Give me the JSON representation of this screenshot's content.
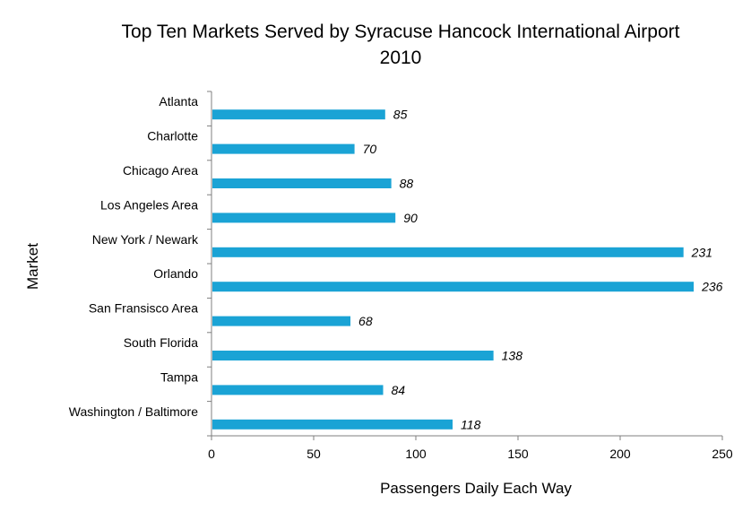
{
  "chart_data": {
    "type": "bar",
    "orientation": "horizontal",
    "title": "Top Ten Markets Served by Syracuse Hancock International Airport",
    "subtitle": "2010",
    "xlabel": "Passengers Daily Each Way",
    "ylabel": "Market",
    "categories": [
      "Atlanta",
      "Charlotte",
      "Chicago Area",
      "Los Angeles Area",
      "New York / Newark",
      "Orlando",
      "San Fransisco Area",
      "South Florida",
      "Tampa",
      "Washington / Baltimore"
    ],
    "values": [
      85,
      70,
      88,
      90,
      231,
      236,
      68,
      138,
      84,
      118
    ],
    "xlim": [
      0,
      250
    ],
    "xticks": [
      0,
      50,
      100,
      150,
      200,
      250
    ],
    "grid": false,
    "legend": "none",
    "bar_color": "#1AA3D5"
  }
}
